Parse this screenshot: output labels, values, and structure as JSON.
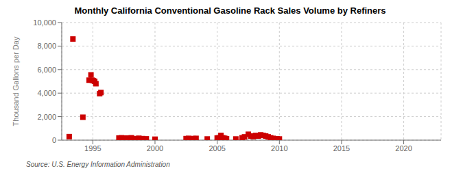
{
  "chart_data": {
    "type": "scatter",
    "title": "Monthly California Conventional Gasoline Rack Sales Volume by Refiners",
    "ylabel": "Thousand Gallons per Day",
    "annotation": "Source: U.S. Energy Information Administration",
    "color": "#cc0000",
    "marker": "square",
    "grid": true,
    "xlim": [
      1992.5,
      2023
    ],
    "ylim": [
      0,
      10000
    ],
    "xticks": [
      1995,
      2000,
      2005,
      2010,
      2015,
      2020
    ],
    "yticks": [
      0,
      {
        "value": 2000,
        "label": "2,000"
      },
      {
        "value": 4000,
        "label": "4,000"
      },
      {
        "value": 6000,
        "label": "6,000"
      },
      {
        "value": 8000,
        "label": "8,000"
      },
      {
        "value": 10000,
        "label": "10,000"
      }
    ],
    "x": [
      1993.1,
      1993.4,
      1994.2,
      1994.7,
      1994.85,
      1994.95,
      1995.05,
      1995.15,
      1995.25,
      1995.55,
      1995.65,
      1997.1,
      1997.3,
      1997.5,
      1997.7,
      1997.9,
      1998.1,
      1998.5,
      1998.7,
      1999.0,
      1999.3,
      2000.0,
      2002.5,
      2002.7,
      2002.9,
      2003.1,
      2003.3,
      2004.2,
      2005.0,
      2005.15,
      2005.3,
      2005.45,
      2005.6,
      2005.75,
      2006.5,
      2007.0,
      2007.2,
      2007.5,
      2007.7,
      2007.9,
      2008.1,
      2008.3,
      2008.5,
      2008.7,
      2008.9,
      2009.1,
      2009.3,
      2009.5,
      2009.8,
      2010.0
    ],
    "values": [
      300,
      8600,
      1950,
      5100,
      5550,
      5100,
      5050,
      5000,
      4800,
      3950,
      4050,
      180,
      200,
      160,
      180,
      150,
      200,
      130,
      160,
      130,
      110,
      80,
      130,
      150,
      120,
      130,
      150,
      100,
      180,
      200,
      400,
      200,
      160,
      120,
      100,
      200,
      280,
      500,
      350,
      300,
      400,
      350,
      450,
      400,
      350,
      280,
      200,
      150,
      120,
      100
    ]
  }
}
